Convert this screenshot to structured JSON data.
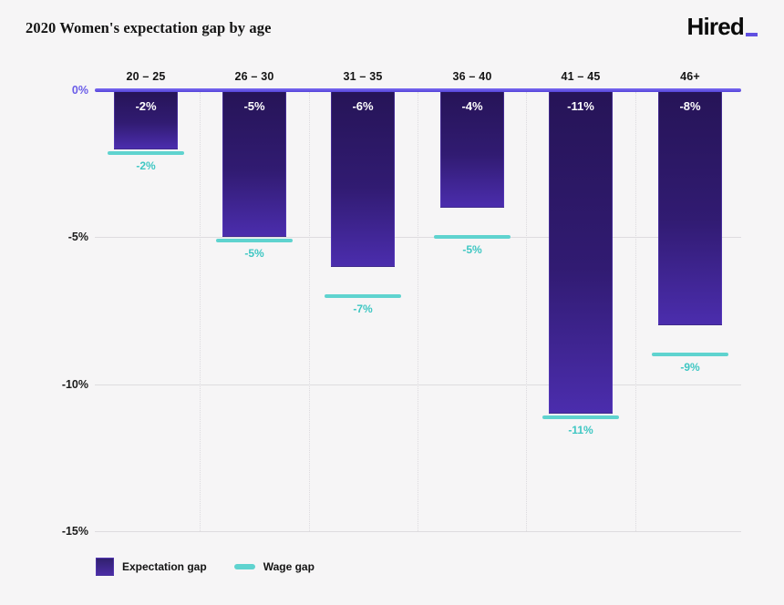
{
  "header": {
    "title": "2020 Women's expectation gap by age",
    "logo_text": "Hired"
  },
  "colors": {
    "background": "#f6f5f6",
    "accent_purple": "#6150e1",
    "bar_gradient_top": "#261457",
    "bar_gradient_bottom": "#4b2dad",
    "teal": "#5fd3cf",
    "teal_text": "#3fc7c3",
    "zero_label_purple": "#6a5ce8",
    "axis_text": "#1c1c1c",
    "gridline": "#dedcdf",
    "bar_value_text": "#ffffff"
  },
  "chart_data": {
    "type": "bar",
    "title": "2020 Women's expectation gap by age",
    "categories": [
      "20 – 25",
      "26 – 30",
      "31 – 35",
      "36 – 40",
      "41 – 45",
      "46+"
    ],
    "series": [
      {
        "name": "Expectation gap",
        "values": [
          -2,
          -5,
          -6,
          -4,
          -11,
          -8
        ],
        "labels": [
          "-2%",
          "-5%",
          "-6%",
          "-4%",
          "-11%",
          "-8%"
        ]
      },
      {
        "name": "Wage gap",
        "values": [
          -2,
          -5,
          -7,
          -5,
          -11,
          -9
        ],
        "labels": [
          "-2%",
          "-5%",
          "-7%",
          "-5%",
          "-11%",
          "-9%"
        ]
      }
    ],
    "yticks": [
      {
        "label": "0%",
        "value": 0
      },
      {
        "label": "-5%",
        "value": -5
      },
      {
        "label": "-10%",
        "value": -10
      },
      {
        "label": "-15%",
        "value": -15
      }
    ],
    "ylim": [
      -15.5,
      0
    ],
    "xlabel": "",
    "ylabel": "",
    "grid": "horizontal solid gridlines, dotted vertical column separators",
    "legend_position": "bottom-left"
  },
  "legend": {
    "items": [
      {
        "label": "Expectation gap",
        "type": "bar-swatch"
      },
      {
        "label": "Wage gap",
        "type": "line-swatch"
      }
    ]
  }
}
